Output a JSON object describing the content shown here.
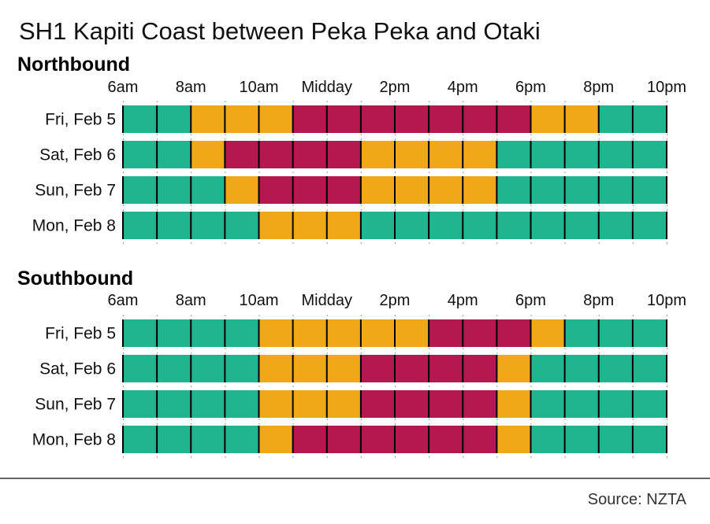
{
  "chart_data": {
    "type": "heatmap",
    "title": "SH1 Kapiti Coast between Peka Peka and Otaki",
    "source": "Source: NZTA",
    "colors": {
      "green": "#1fb58f",
      "amber": "#f0a818",
      "red": "#b5174f"
    },
    "x_range": [
      6,
      22
    ],
    "x_tick_values": [
      6,
      8,
      10,
      12,
      14,
      16,
      18,
      20,
      22
    ],
    "x_tick_labels": [
      "6am",
      "8am",
      "10am",
      "Midday",
      "2pm",
      "4pm",
      "6pm",
      "8pm",
      "10pm"
    ],
    "sections": [
      {
        "name": "Northbound",
        "days": [
          {
            "label": "Fri, Feb 5",
            "segments": [
              {
                "start": 6,
                "end": 8,
                "level": "green"
              },
              {
                "start": 8,
                "end": 11,
                "level": "amber"
              },
              {
                "start": 11,
                "end": 18,
                "level": "red"
              },
              {
                "start": 18,
                "end": 20,
                "level": "amber"
              },
              {
                "start": 20,
                "end": 22,
                "level": "green"
              }
            ]
          },
          {
            "label": "Sat, Feb 6",
            "segments": [
              {
                "start": 6,
                "end": 8,
                "level": "green"
              },
              {
                "start": 8,
                "end": 9,
                "level": "amber"
              },
              {
                "start": 9,
                "end": 13,
                "level": "red"
              },
              {
                "start": 13,
                "end": 17,
                "level": "amber"
              },
              {
                "start": 17,
                "end": 22,
                "level": "green"
              }
            ]
          },
          {
            "label": "Sun, Feb 7",
            "segments": [
              {
                "start": 6,
                "end": 9,
                "level": "green"
              },
              {
                "start": 9,
                "end": 10,
                "level": "amber"
              },
              {
                "start": 10,
                "end": 13,
                "level": "red"
              },
              {
                "start": 13,
                "end": 17,
                "level": "amber"
              },
              {
                "start": 17,
                "end": 22,
                "level": "green"
              }
            ]
          },
          {
            "label": "Mon, Feb 8",
            "segments": [
              {
                "start": 6,
                "end": 10,
                "level": "green"
              },
              {
                "start": 10,
                "end": 13,
                "level": "amber"
              },
              {
                "start": 13,
                "end": 22,
                "level": "green"
              }
            ]
          }
        ]
      },
      {
        "name": "Southbound",
        "days": [
          {
            "label": "Fri, Feb 5",
            "segments": [
              {
                "start": 6,
                "end": 10,
                "level": "green"
              },
              {
                "start": 10,
                "end": 15,
                "level": "amber"
              },
              {
                "start": 15,
                "end": 18,
                "level": "red"
              },
              {
                "start": 18,
                "end": 19,
                "level": "amber"
              },
              {
                "start": 19,
                "end": 22,
                "level": "green"
              }
            ]
          },
          {
            "label": "Sat, Feb 6",
            "segments": [
              {
                "start": 6,
                "end": 10,
                "level": "green"
              },
              {
                "start": 10,
                "end": 13,
                "level": "amber"
              },
              {
                "start": 13,
                "end": 17,
                "level": "red"
              },
              {
                "start": 17,
                "end": 18,
                "level": "amber"
              },
              {
                "start": 18,
                "end": 22,
                "level": "green"
              }
            ]
          },
          {
            "label": "Sun, Feb 7",
            "segments": [
              {
                "start": 6,
                "end": 10,
                "level": "green"
              },
              {
                "start": 10,
                "end": 13,
                "level": "amber"
              },
              {
                "start": 13,
                "end": 17,
                "level": "red"
              },
              {
                "start": 17,
                "end": 18,
                "level": "amber"
              },
              {
                "start": 18,
                "end": 22,
                "level": "green"
              }
            ]
          },
          {
            "label": "Mon, Feb 8",
            "segments": [
              {
                "start": 6,
                "end": 10,
                "level": "green"
              },
              {
                "start": 10,
                "end": 11,
                "level": "amber"
              },
              {
                "start": 11,
                "end": 17,
                "level": "red"
              },
              {
                "start": 17,
                "end": 18,
                "level": "amber"
              },
              {
                "start": 18,
                "end": 22,
                "level": "green"
              }
            ]
          }
        ]
      }
    ]
  }
}
